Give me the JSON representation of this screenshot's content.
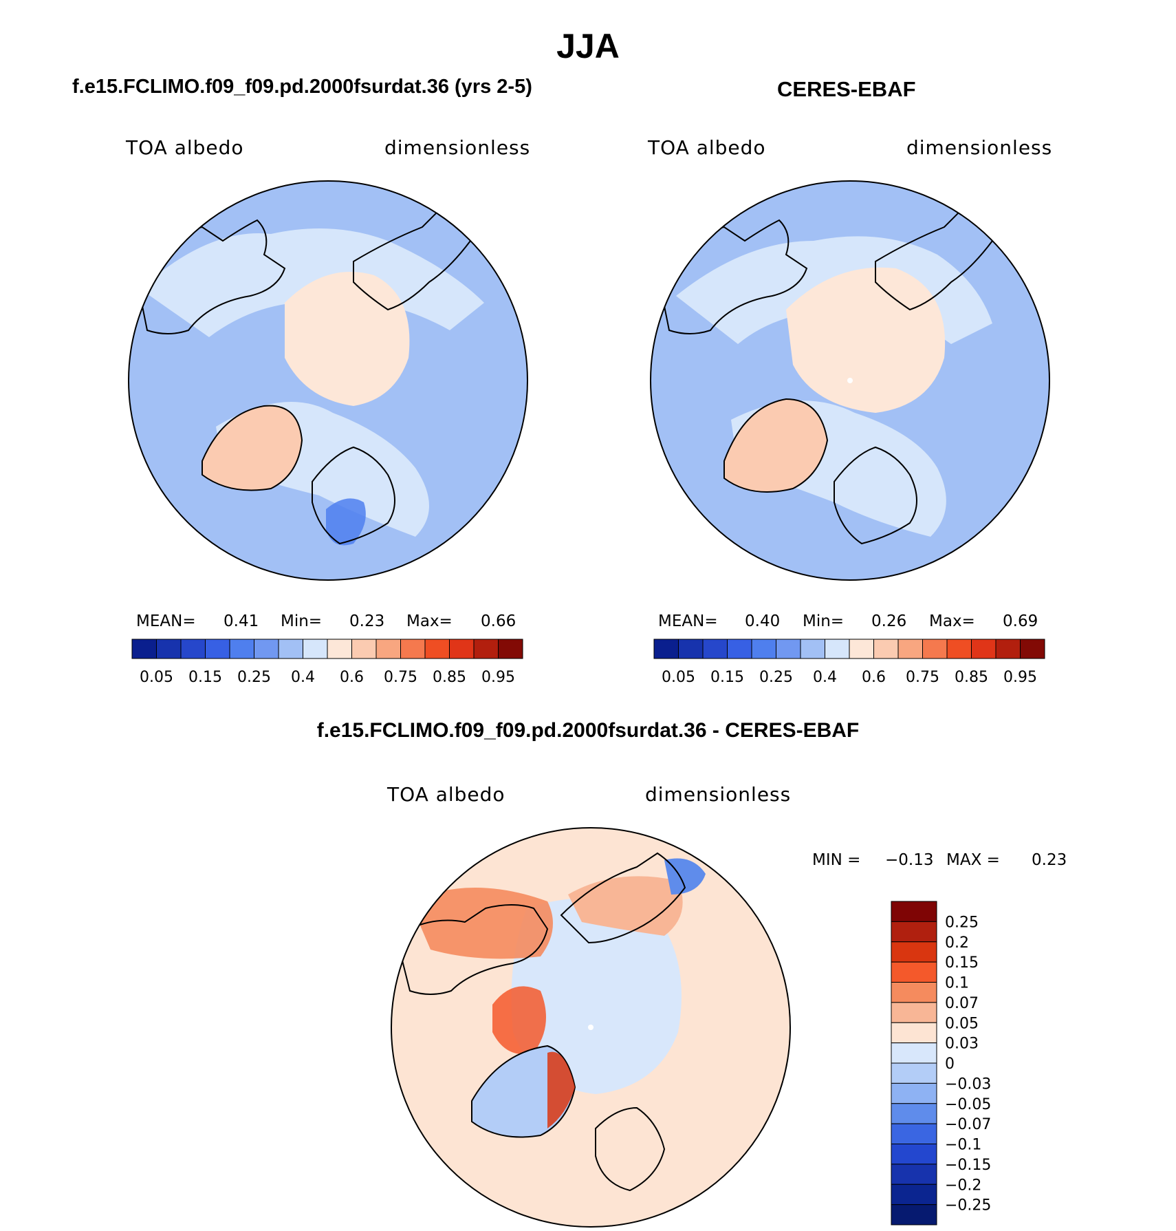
{
  "page": {
    "season": "JJA",
    "model_title": "f.e15.FCLIMO.f09_f09.pd.2000fsurdat.36 (yrs 2-5)",
    "obs_title": "CERES-EBAF",
    "diff_title": "f.e15.FCLIMO.f09_f09.pd.2000fsurdat.36 - CERES-EBAF"
  },
  "chart_data": [
    {
      "type": "polar-contour-map",
      "panel": "model",
      "title": "f.e15.FCLIMO.f09_f09.pd.2000fsurdat.36 (yrs 2-5)",
      "variable_label": "TOA albedo",
      "units_label": "dimensionless",
      "stats": {
        "mean_label": "MEAN=",
        "mean": "0.41",
        "min_label": "Min=",
        "min": "0.23",
        "max_label": "Max=",
        "max": "0.66"
      },
      "colorbar": {
        "orientation": "horizontal",
        "levels": [
          0.05,
          0.1,
          0.15,
          0.2,
          0.25,
          0.3,
          0.35,
          0.4,
          0.5,
          0.6,
          0.7,
          0.75,
          0.8,
          0.85,
          0.9,
          0.95
        ],
        "tick_labels": [
          "0.05",
          "0.15",
          "0.25",
          "0.4",
          "0.6",
          "0.75",
          "0.85",
          "0.95"
        ],
        "colors": [
          "#0a1f8e",
          "#1733ad",
          "#2647cb",
          "#3760e4",
          "#4f7fee",
          "#7198f1",
          "#a2c0f5",
          "#d6e6fb",
          "#fde7d8",
          "#fbcbb1",
          "#f8a680",
          "#f5794e",
          "#ef4e23",
          "#e03518",
          "#b21f0e",
          "#820a05"
        ]
      }
    },
    {
      "type": "polar-contour-map",
      "panel": "obs",
      "title": "CERES-EBAF",
      "variable_label": "TOA albedo",
      "units_label": "dimensionless",
      "stats": {
        "mean_label": "MEAN=",
        "mean": "0.40",
        "min_label": "Min=",
        "min": "0.26",
        "max_label": "Max=",
        "max": "0.69"
      },
      "colorbar": {
        "orientation": "horizontal",
        "levels": [
          0.05,
          0.1,
          0.15,
          0.2,
          0.25,
          0.3,
          0.35,
          0.4,
          0.5,
          0.6,
          0.7,
          0.75,
          0.8,
          0.85,
          0.9,
          0.95
        ],
        "tick_labels": [
          "0.05",
          "0.15",
          "0.25",
          "0.4",
          "0.6",
          "0.75",
          "0.85",
          "0.95"
        ],
        "colors": [
          "#0a1f8e",
          "#1733ad",
          "#2647cb",
          "#3760e4",
          "#4f7fee",
          "#7198f1",
          "#a2c0f5",
          "#d6e6fb",
          "#fde7d8",
          "#fbcbb1",
          "#f8a680",
          "#f5794e",
          "#ef4e23",
          "#e03518",
          "#b21f0e",
          "#820a05"
        ]
      }
    },
    {
      "type": "polar-contour-map",
      "panel": "difference",
      "title": "f.e15.FCLIMO.f09_f09.pd.2000fsurdat.36 - CERES-EBAF",
      "variable_label": "TOA albedo",
      "units_label": "dimensionless",
      "stats": {
        "min_label": "MIN =",
        "min": "−0.13",
        "max_label": "MAX =",
        "max": "0.23"
      },
      "colorbar": {
        "orientation": "vertical",
        "tick_labels": [
          "0.25",
          "0.2",
          "0.15",
          "0.1",
          "0.07",
          "0.05",
          "0.03",
          "0",
          "−0.03",
          "−0.05",
          "−0.07",
          "−0.1",
          "−0.15",
          "−0.2",
          "−0.25"
        ],
        "colors": [
          "#7f0505",
          "#b0200f",
          "#d93610",
          "#f4592b",
          "#f58b5e",
          "#f8b696",
          "#fde4d3",
          "#d8e7fb",
          "#b3cdf7",
          "#8eb2f3",
          "#5f8ceb",
          "#3a66e2",
          "#2347cf",
          "#1733ad",
          "#0b2590",
          "#061a70"
        ]
      }
    }
  ]
}
